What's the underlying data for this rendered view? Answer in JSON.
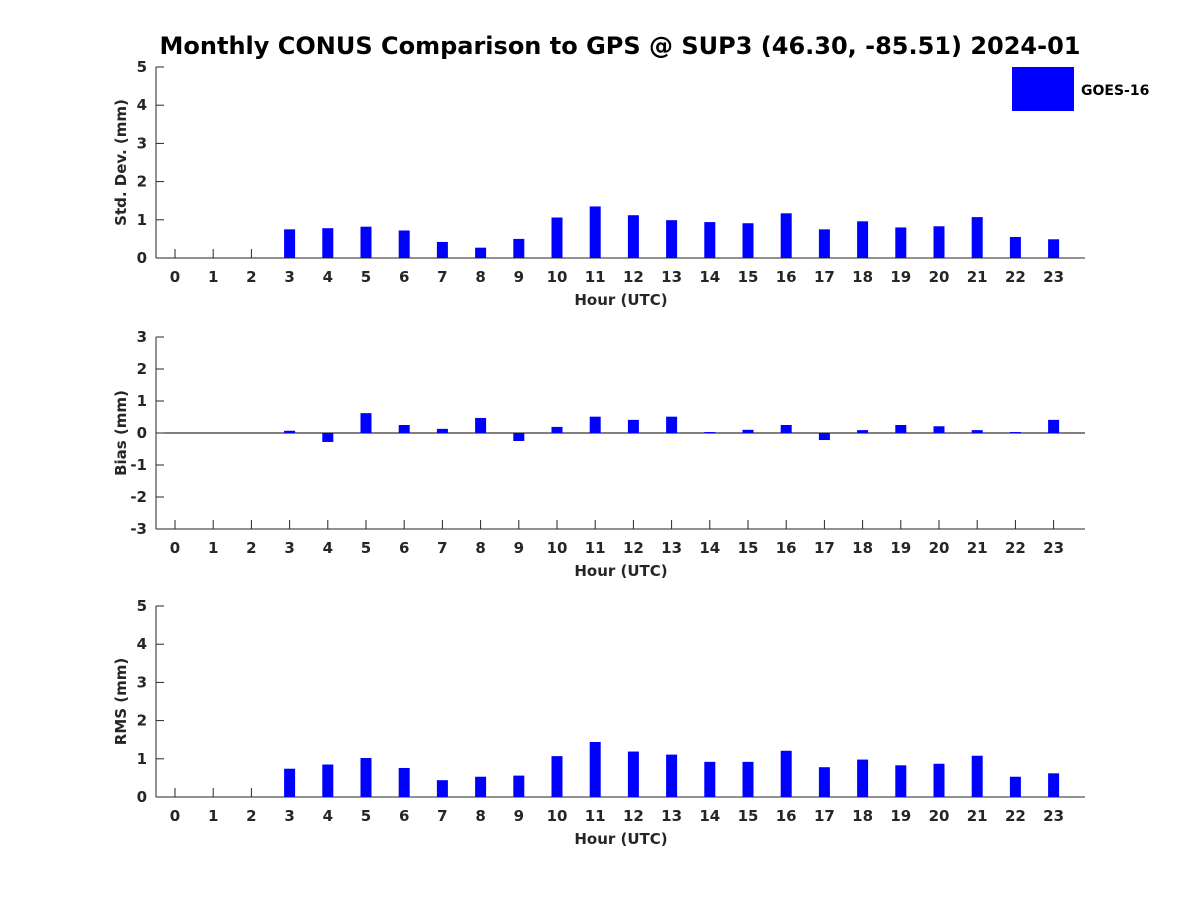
{
  "figure": {
    "title": "Monthly CONUS Comparison to GPS @ SUP3 (46.30, -85.51) 2024-01"
  },
  "legend": {
    "label": "GOES-16",
    "color": "#0000ff"
  },
  "chart_data": [
    {
      "type": "bar",
      "name": "std-dev",
      "xlabel": "Hour (UTC)",
      "ylabel": "Std. Dev. (mm)",
      "categories": [
        "0",
        "1",
        "2",
        "3",
        "4",
        "5",
        "6",
        "7",
        "8",
        "9",
        "10",
        "11",
        "12",
        "13",
        "14",
        "15",
        "16",
        "17",
        "18",
        "19",
        "20",
        "21",
        "22",
        "23"
      ],
      "ylim": [
        0,
        5
      ],
      "yticks": [
        "0",
        "1",
        "2",
        "3",
        "4",
        "5"
      ],
      "series": [
        {
          "name": "GOES-16",
          "color": "#0000ff",
          "values": [
            null,
            null,
            null,
            0.75,
            0.78,
            0.82,
            0.72,
            0.42,
            0.27,
            0.5,
            1.06,
            1.35,
            1.12,
            0.99,
            0.94,
            0.91,
            1.17,
            0.75,
            0.96,
            0.8,
            0.83,
            1.07,
            0.55,
            0.49
          ]
        }
      ],
      "grid": false,
      "legend_position": "top-right"
    },
    {
      "type": "bar",
      "name": "bias",
      "xlabel": "Hour (UTC)",
      "ylabel": "Bias (mm)",
      "categories": [
        "0",
        "1",
        "2",
        "3",
        "4",
        "5",
        "6",
        "7",
        "8",
        "9",
        "10",
        "11",
        "12",
        "13",
        "14",
        "15",
        "16",
        "17",
        "18",
        "19",
        "20",
        "21",
        "22",
        "23"
      ],
      "ylim": [
        -3,
        3
      ],
      "yticks": [
        "-3",
        "-2",
        "-1",
        "0",
        "1",
        "2",
        "3"
      ],
      "series": [
        {
          "name": "GOES-16",
          "color": "#0000ff",
          "values": [
            null,
            null,
            null,
            0.07,
            -0.28,
            0.62,
            0.25,
            0.13,
            0.47,
            -0.25,
            0.19,
            0.51,
            0.41,
            0.51,
            0.03,
            0.1,
            0.25,
            -0.22,
            0.09,
            0.25,
            0.21,
            0.09,
            0.03,
            0.41
          ]
        }
      ],
      "grid": false
    },
    {
      "type": "bar",
      "name": "rms",
      "xlabel": "Hour (UTC)",
      "ylabel": "RMS (mm)",
      "categories": [
        "0",
        "1",
        "2",
        "3",
        "4",
        "5",
        "6",
        "7",
        "8",
        "9",
        "10",
        "11",
        "12",
        "13",
        "14",
        "15",
        "16",
        "17",
        "18",
        "19",
        "20",
        "21",
        "22",
        "23"
      ],
      "ylim": [
        0,
        5
      ],
      "yticks": [
        "0",
        "1",
        "2",
        "3",
        "4",
        "5"
      ],
      "series": [
        {
          "name": "GOES-16",
          "color": "#0000ff",
          "values": [
            null,
            null,
            null,
            0.74,
            0.85,
            1.02,
            0.76,
            0.44,
            0.53,
            0.56,
            1.07,
            1.44,
            1.19,
            1.11,
            0.92,
            0.92,
            1.21,
            0.78,
            0.98,
            0.83,
            0.87,
            1.08,
            0.53,
            0.62
          ]
        }
      ],
      "grid": false
    }
  ]
}
